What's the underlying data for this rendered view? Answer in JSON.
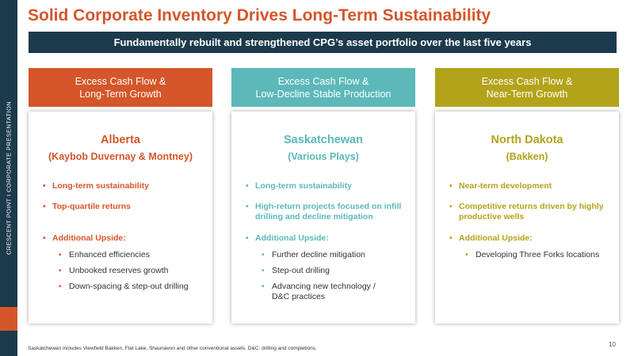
{
  "sidebar": {
    "text": "CRESCENT POINT   I   CORPORATE PRESENTATION",
    "color": "#1b3a4b",
    "accent_color": "#d4562a"
  },
  "title": "Solid Corporate Inventory Drives Long-Term Sustainability",
  "banner": "Fundamentally rebuilt and strengthened CPG’s asset portfolio over the last five years",
  "columns": [
    {
      "color": "#d4562a",
      "header_line1": "Excess Cash Flow &",
      "header_line2": "Long-Term Growth",
      "region": "Alberta",
      "plays": "(Kaybob Duvernay & Montney)",
      "bullet1": "Long-term sustainability",
      "bullet2": "Top-quartile returns",
      "upside_label": "Additional Upside:",
      "subs": [
        "Enhanced efficiencies",
        "Unbooked reserves growth",
        "Down-spacing & step-out drilling"
      ]
    },
    {
      "color": "#5cb8b9",
      "header_line1": "Excess Cash Flow &",
      "header_line2": "Low-Decline Stable Production",
      "region": "Saskatchewan",
      "plays": "(Various Plays)",
      "bullet1": "Long-term sustainability",
      "bullet2_line1": "High-return projects focused on infill",
      "bullet2_line2": "drilling and decline mitigation",
      "upside_label": "Additional Upside:",
      "subs": [
        "Further decline mitigation",
        "Step-out drilling",
        "Advancing new technology /"
      ],
      "sub_continuation": "D&C practices"
    },
    {
      "color": "#b3a31a",
      "header_line1": "Excess Cash Flow &",
      "header_line2": "Near-Term Growth",
      "region": "North Dakota",
      "plays": "(Bakken)",
      "bullet1": "Near-term development",
      "bullet2_line1": "Competitive returns driven by highly",
      "bullet2_line2": "productive wells",
      "upside_label": "Additional Upside:",
      "subs": [
        "Developing Three Forks locations"
      ]
    }
  ],
  "footnote": "Saskatchewan includes Viewfield Bakken, Flat Lake, Shaunavon and other conventional assets. D&C: drilling and completions.",
  "page_number": "10"
}
